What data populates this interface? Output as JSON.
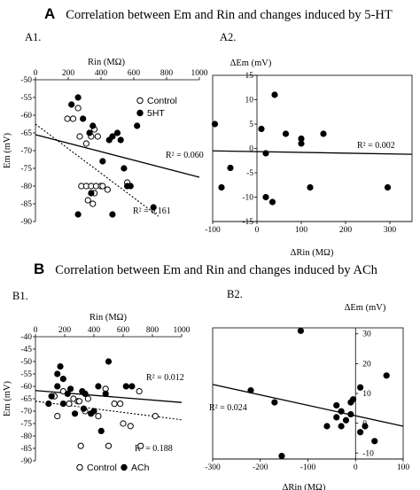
{
  "figure": {
    "sectionA": {
      "letter": "A",
      "title": "Correlation between Em and Rin and changes induced by 5-HT"
    },
    "sectionB": {
      "letter": "B",
      "title": "Correlation between Em and Rin and changes induced by ACh"
    }
  },
  "chart_data": [
    {
      "id": "A1",
      "panel_label": "A1.",
      "type": "scatter",
      "xlabel": "Rin (MΩ)",
      "ylabel": "Em (mV)",
      "xlim": [
        0,
        1000
      ],
      "ylim": [
        -90,
        -50
      ],
      "xticks": [
        "0",
        "200",
        "400",
        "600",
        "800",
        "1000"
      ],
      "yticks": [
        "-50",
        "-55",
        "-60",
        "-65",
        "-70",
        "-75",
        "-80",
        "-85",
        "-90"
      ],
      "legend_position": "top-right",
      "series": [
        {
          "name": "Control",
          "marker": "open",
          "points": [
            [
              195,
              -61
            ],
            [
              230,
              -61
            ],
            [
              260,
              -58
            ],
            [
              270,
              -66
            ],
            [
              310,
              -68
            ],
            [
              340,
              -66
            ],
            [
              360,
              -64
            ],
            [
              380,
              -66
            ],
            [
              280,
              -80
            ],
            [
              310,
              -80
            ],
            [
              340,
              -80
            ],
            [
              320,
              -84
            ],
            [
              350,
              -85
            ],
            [
              360,
              -82
            ],
            [
              370,
              -80
            ],
            [
              400,
              -80
            ],
            [
              410,
              -80
            ],
            [
              440,
              -81
            ],
            [
              560,
              -79
            ]
          ]
        },
        {
          "name": "5HT",
          "marker": "filled",
          "points": [
            [
              220,
              -57
            ],
            [
              260,
              -55
            ],
            [
              290,
              -61
            ],
            [
              330,
              -65
            ],
            [
              350,
              -63
            ],
            [
              410,
              -73
            ],
            [
              450,
              -67
            ],
            [
              470,
              -66
            ],
            [
              500,
              -65
            ],
            [
              520,
              -67
            ],
            [
              560,
              -80
            ],
            [
              540,
              -75
            ],
            [
              580,
              -80
            ],
            [
              340,
              -82
            ],
            [
              260,
              -88
            ],
            [
              470,
              -88
            ],
            [
              620,
              -63
            ],
            [
              720,
              -86
            ]
          ]
        }
      ],
      "fits": [
        {
          "series": "Control",
          "style": "dashed",
          "x": [
            0,
            750
          ],
          "y": [
            -62.5,
            -88.5
          ],
          "label": "R² = 0.161"
        },
        {
          "series": "5HT",
          "style": "solid",
          "x": [
            0,
            1000
          ],
          "y": [
            -65.5,
            -77.5
          ],
          "label": "R² = 0.060"
        }
      ]
    },
    {
      "id": "A2",
      "panel_label": "A2.",
      "type": "scatter",
      "xlabel": "ΔRin (MΩ)",
      "ylabel": "ΔEm (mV)",
      "xlim": [
        -100,
        350
      ],
      "ylim": [
        -15,
        15
      ],
      "xticks": [
        "-100",
        "0",
        "100",
        "200",
        "300"
      ],
      "yticks": [
        "15",
        "10",
        "5",
        "0",
        "-5",
        "-10",
        "-15"
      ],
      "series": [
        {
          "name": "",
          "marker": "filled",
          "points": [
            [
              -95,
              5
            ],
            [
              10,
              4
            ],
            [
              40,
              11
            ],
            [
              65,
              3
            ],
            [
              100,
              2
            ],
            [
              100,
              1
            ],
            [
              150,
              3
            ],
            [
              20,
              -1
            ],
            [
              -60,
              -4
            ],
            [
              -80,
              -8
            ],
            [
              20,
              -10
            ],
            [
              35,
              -11
            ],
            [
              120,
              -8
            ],
            [
              295,
              -8
            ]
          ]
        }
      ],
      "fits": [
        {
          "series": "",
          "style": "solid",
          "x": [
            -100,
            350
          ],
          "y": [
            -0.5,
            -1.2
          ],
          "label": "R² = 0.002"
        }
      ]
    },
    {
      "id": "B1",
      "panel_label": "B1.",
      "type": "scatter",
      "xlabel": "Rin (MΩ)",
      "ylabel": "Em (mV)",
      "xlim": [
        0,
        1000
      ],
      "ylim": [
        -90,
        -40
      ],
      "xticks": [
        "0",
        "200",
        "400",
        "600",
        "800",
        "1000"
      ],
      "yticks": [
        "-40",
        "-45",
        "-50",
        "-55",
        "-60",
        "-65",
        "-70",
        "-75",
        "-80",
        "-85",
        "-90"
      ],
      "legend_position": "bottom",
      "series": [
        {
          "name": "Control",
          "marker": "open",
          "points": [
            [
              130,
              -64
            ],
            [
              150,
              -72
            ],
            [
              190,
              -62
            ],
            [
              230,
              -67
            ],
            [
              260,
              -65
            ],
            [
              290,
              -66
            ],
            [
              300,
              -66
            ],
            [
              340,
              -70
            ],
            [
              360,
              -65
            ],
            [
              430,
              -72
            ],
            [
              480,
              -61
            ],
            [
              540,
              -67
            ],
            [
              580,
              -67
            ],
            [
              600,
              -75
            ],
            [
              650,
              -76
            ],
            [
              710,
              -62
            ],
            [
              820,
              -72
            ],
            [
              310,
              -84
            ],
            [
              500,
              -84
            ],
            [
              720,
              -84
            ]
          ]
        },
        {
          "name": "ACh",
          "marker": "filled",
          "points": [
            [
              150,
              -55
            ],
            [
              170,
              -52
            ],
            [
              190,
              -57
            ],
            [
              150,
              -60
            ],
            [
              110,
              -64
            ],
            [
              190,
              -67
            ],
            [
              90,
              -67
            ],
            [
              220,
              -63
            ],
            [
              240,
              -61
            ],
            [
              270,
              -71
            ],
            [
              320,
              -62
            ],
            [
              340,
              -63
            ],
            [
              330,
              -69
            ],
            [
              380,
              -71
            ],
            [
              400,
              -70
            ],
            [
              430,
              -60
            ],
            [
              480,
              -63
            ],
            [
              500,
              -50
            ],
            [
              450,
              -78
            ],
            [
              620,
              -60
            ],
            [
              660,
              -60
            ]
          ]
        }
      ],
      "fits": [
        {
          "series": "Control",
          "style": "dashed",
          "x": [
            0,
            1000
          ],
          "y": [
            -66,
            -73.5
          ],
          "label": "R² = 0.188"
        },
        {
          "series": "ACh",
          "style": "solid",
          "x": [
            0,
            1000
          ],
          "y": [
            -61.7,
            -66.5
          ],
          "label": "R² = 0.012"
        }
      ]
    },
    {
      "id": "B2",
      "panel_label": "B2.",
      "type": "scatter",
      "xlabel": "ΔRin (MΩ)",
      "ylabel": "ΔEm (mV)",
      "xlim": [
        -300,
        100
      ],
      "ylim": [
        -12,
        32
      ],
      "xticks": [
        "-300",
        "-200",
        "-100",
        "0",
        "100"
      ],
      "yticks": [
        "30",
        "20",
        "10",
        "0",
        "-10"
      ],
      "series": [
        {
          "name": "",
          "marker": "filled",
          "points": [
            [
              -220,
              11
            ],
            [
              -170,
              7
            ],
            [
              -115,
              31
            ],
            [
              -155,
              -11
            ],
            [
              -60,
              -1
            ],
            [
              -40,
              6
            ],
            [
              -40,
              2
            ],
            [
              -30,
              4
            ],
            [
              -20,
              1
            ],
            [
              -10,
              7
            ],
            [
              -5,
              8
            ],
            [
              -10,
              3
            ],
            [
              -30,
              -1
            ],
            [
              10,
              12
            ],
            [
              10,
              -3
            ],
            [
              20,
              -1
            ],
            [
              40,
              -6
            ],
            [
              65,
              16
            ]
          ]
        }
      ],
      "fits": [
        {
          "series": "",
          "style": "solid",
          "x": [
            -300,
            100
          ],
          "y": [
            13,
            -1
          ],
          "label": "R² = 0.024"
        }
      ]
    }
  ]
}
